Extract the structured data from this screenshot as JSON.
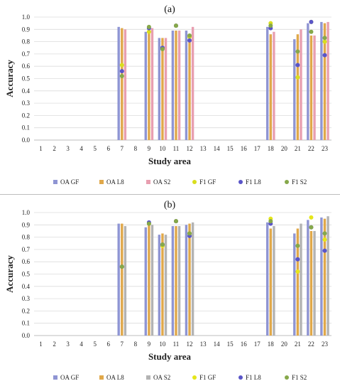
{
  "chart_data": [
    {
      "type": "bar",
      "panel_label": "(a)",
      "xlabel": "Study area",
      "ylabel": "Accuracy",
      "ylim": [
        0,
        1
      ],
      "yticks": [
        "0.0",
        "0.1",
        "0.2",
        "0.3",
        "0.4",
        "0.5",
        "0.6",
        "0.7",
        "0.8",
        "0.9",
        "1.0"
      ],
      "categories": [
        "1",
        "2",
        "3",
        "4",
        "5",
        "6",
        "7",
        "8",
        "9",
        "10",
        "11",
        "12",
        "13",
        "14",
        "15",
        "16",
        "17",
        "18",
        "20",
        "21",
        "22",
        "23"
      ],
      "grid": true,
      "legend_position": "bottom",
      "series": [
        {
          "name": "OA GF",
          "mark": "bar",
          "color": "#8f95d3",
          "values": [
            null,
            null,
            null,
            null,
            null,
            null,
            0.92,
            null,
            0.88,
            0.83,
            0.89,
            0.89,
            null,
            null,
            null,
            null,
            null,
            0.92,
            null,
            0.82,
            0.95,
            0.96
          ]
        },
        {
          "name": "OA L8",
          "mark": "bar",
          "color": "#e0a84a",
          "values": [
            null,
            null,
            null,
            null,
            null,
            null,
            0.91,
            null,
            0.91,
            0.83,
            0.89,
            0.85,
            null,
            null,
            null,
            null,
            null,
            0.86,
            null,
            0.86,
            0.85,
            0.95
          ]
        },
        {
          "name": "OA S2",
          "mark": "bar",
          "color": "#e89fb0",
          "values": [
            null,
            null,
            null,
            null,
            null,
            null,
            0.9,
            null,
            0.91,
            0.83,
            0.89,
            0.92,
            null,
            null,
            null,
            null,
            null,
            0.88,
            null,
            0.9,
            0.85,
            0.96
          ]
        },
        {
          "name": "F1 GF",
          "mark": "dot",
          "color": "#d9de1e",
          "values": [
            null,
            null,
            null,
            null,
            null,
            null,
            0.61,
            null,
            0.88,
            0.75,
            0.93,
            0.84,
            null,
            null,
            null,
            null,
            null,
            0.95,
            null,
            0.51,
            0.96,
            0.8
          ]
        },
        {
          "name": "F1 L8",
          "mark": "dot",
          "color": "#5a55c8",
          "values": [
            null,
            null,
            null,
            null,
            null,
            null,
            0.56,
            null,
            0.91,
            0.75,
            0.93,
            0.81,
            null,
            null,
            null,
            null,
            null,
            0.91,
            null,
            0.61,
            0.96,
            0.69
          ]
        },
        {
          "name": "F1 S2",
          "mark": "dot",
          "color": "#86a84a",
          "values": [
            null,
            null,
            null,
            null,
            null,
            null,
            0.52,
            null,
            0.92,
            0.74,
            0.93,
            0.85,
            null,
            null,
            null,
            null,
            null,
            0.93,
            null,
            0.72,
            0.88,
            0.83
          ]
        }
      ]
    },
    {
      "type": "bar",
      "panel_label": "(b)",
      "xlabel": "Study area",
      "ylabel": "Accuracy",
      "ylim": [
        0,
        1
      ],
      "yticks": [
        "0.0",
        "0.1",
        "0.2",
        "0.3",
        "0.4",
        "0.5",
        "0.6",
        "0.7",
        "0.8",
        "0.9",
        "1.0"
      ],
      "categories": [
        "1",
        "2",
        "3",
        "4",
        "5",
        "6",
        "7",
        "8",
        "9",
        "10",
        "11",
        "12",
        "13",
        "14",
        "15",
        "16",
        "17",
        "18",
        "20",
        "21",
        "22",
        "23"
      ],
      "grid": true,
      "legend_position": "bottom",
      "series": [
        {
          "name": "OA GF",
          "mark": "bar",
          "color": "#8f95d3",
          "values": [
            null,
            null,
            null,
            null,
            null,
            null,
            0.91,
            null,
            0.88,
            0.82,
            0.89,
            0.9,
            null,
            null,
            null,
            null,
            null,
            0.92,
            null,
            0.83,
            0.94,
            0.96
          ]
        },
        {
          "name": "OA L8",
          "mark": "bar",
          "color": "#e0a84a",
          "values": [
            null,
            null,
            null,
            null,
            null,
            null,
            0.91,
            null,
            0.9,
            0.83,
            0.89,
            0.91,
            null,
            null,
            null,
            null,
            null,
            0.87,
            null,
            0.87,
            0.85,
            0.95
          ]
        },
        {
          "name": "OA S2",
          "mark": "bar",
          "color": "#b3b3b3",
          "values": [
            null,
            null,
            null,
            null,
            null,
            null,
            0.89,
            null,
            0.9,
            0.82,
            0.89,
            0.92,
            null,
            null,
            null,
            null,
            null,
            0.89,
            null,
            0.91,
            0.85,
            0.97
          ]
        },
        {
          "name": "F1 GF",
          "mark": "dot",
          "color": "#e5e61a",
          "values": [
            null,
            null,
            null,
            null,
            null,
            null,
            0.56,
            null,
            0.91,
            0.73,
            0.93,
            0.83,
            null,
            null,
            null,
            null,
            null,
            0.95,
            null,
            0.52,
            0.96,
            0.78
          ]
        },
        {
          "name": "F1 L8",
          "mark": "dot",
          "color": "#5a55c8",
          "values": [
            null,
            null,
            null,
            null,
            null,
            null,
            0.56,
            null,
            0.92,
            0.74,
            0.93,
            0.81,
            null,
            null,
            null,
            null,
            null,
            0.91,
            null,
            0.62,
            0.88,
            0.69
          ]
        },
        {
          "name": "F1 S2",
          "mark": "dot",
          "color": "#86a84a",
          "values": [
            null,
            null,
            null,
            null,
            null,
            null,
            0.56,
            null,
            0.91,
            0.74,
            0.93,
            0.83,
            null,
            null,
            null,
            null,
            null,
            0.93,
            null,
            0.73,
            0.88,
            0.83
          ]
        }
      ]
    }
  ]
}
